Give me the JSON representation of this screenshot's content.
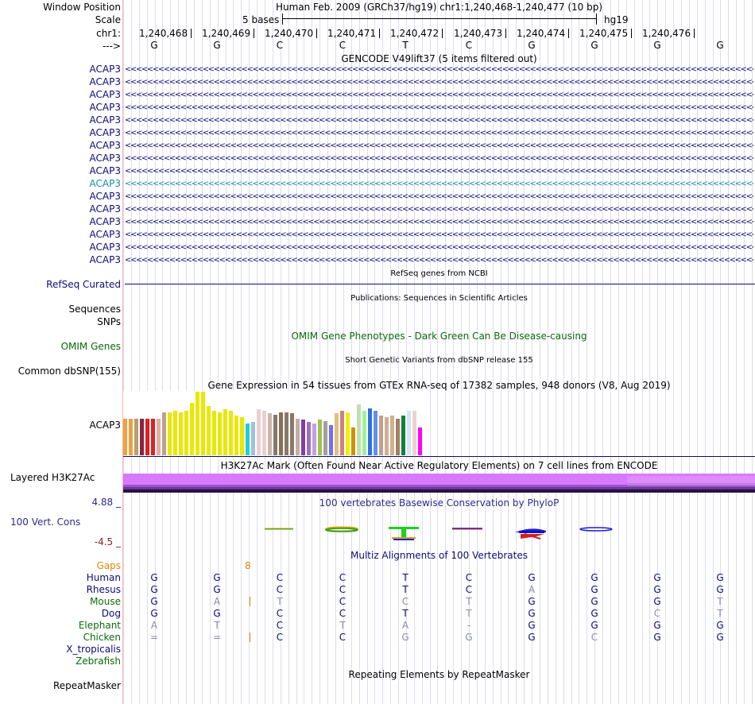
{
  "ruler": {
    "window_position_label": "Window Position",
    "scale_label": "Scale",
    "chrom_label": "chr1:",
    "strand_label": "--->",
    "assembly_text": "Human Feb. 2009 (GRCh37/hg19)   chr1:1,240,468-1,240,477 (10 bp)",
    "scale_text": "5 bases",
    "db_text": "hg19",
    "positions": [
      "1,240,468",
      "1,240,469",
      "1,240,470",
      "1,240,471",
      "1,240,472",
      "1,240,473",
      "1,240,474",
      "1,240,475",
      "1,240,476"
    ],
    "bases": [
      "G",
      "G",
      "C",
      "C",
      "T",
      "C",
      "G",
      "G",
      "G",
      "G"
    ]
  },
  "gencode": {
    "title": "GENCODE V49lift37 (5 items filtered out)",
    "items": [
      "ACAP3",
      "ACAP3",
      "ACAP3",
      "ACAP3",
      "ACAP3",
      "ACAP3",
      "ACAP3",
      "ACAP3",
      "ACAP3",
      "ACAP3",
      "ACAP3",
      "ACAP3",
      "ACAP3",
      "ACAP3",
      "ACAP3",
      "ACAP3"
    ],
    "highlighted_index": 9,
    "color": "#0c0c78",
    "highlight_color": "#1a8aa8"
  },
  "refseq": {
    "label": "RefSeq Curated",
    "title": "RefSeq genes from NCBI",
    "color": "#0c0c78"
  },
  "publications": {
    "label_1": "Sequences",
    "label_2": "SNPs",
    "title": "Publications: Sequences in Scientific Articles"
  },
  "omim": {
    "label": "OMIM Genes",
    "title": "OMIM Gene Phenotypes - Dark Green Can Be Disease-causing",
    "color": "#0a6a0a"
  },
  "dbsnp": {
    "label": "Common dbSNP(155)",
    "title": "Short Genetic Variants from dbSNP release 155"
  },
  "gtex": {
    "label": "ACAP3",
    "title": "Gene Expression in 54 tissues from GTEx RNA-seq of 17382 samples, 948 donors (V8, Aug 2019)",
    "bars": [
      {
        "c": "#f0a040",
        "v": 0.58
      },
      {
        "c": "#f0a040",
        "v": 0.58
      },
      {
        "c": "#b3a06e",
        "v": 0.58
      },
      {
        "c": "#8a2242",
        "v": 0.58
      },
      {
        "c": "#e02020",
        "v": 0.58
      },
      {
        "c": "#e02020",
        "v": 0.58
      },
      {
        "c": "#e0b0a0",
        "v": 0.58
      },
      {
        "c": "#c0a090",
        "v": 0.68
      },
      {
        "c": "#e8e800",
        "v": 0.68
      },
      {
        "c": "#e8e800",
        "v": 0.7
      },
      {
        "c": "#e8e800",
        "v": 0.68
      },
      {
        "c": "#e8e800",
        "v": 0.7
      },
      {
        "c": "#e8e800",
        "v": 0.82
      },
      {
        "c": "#e8e800",
        "v": 1.0
      },
      {
        "c": "#e8e800",
        "v": 1.0
      },
      {
        "c": "#e8e800",
        "v": 0.78
      },
      {
        "c": "#e8e800",
        "v": 0.7
      },
      {
        "c": "#e8e800",
        "v": 0.68
      },
      {
        "c": "#e8e800",
        "v": 0.72
      },
      {
        "c": "#e8e800",
        "v": 0.7
      },
      {
        "c": "#e8e800",
        "v": 0.62
      },
      {
        "c": "#e8e800",
        "v": 0.6
      },
      {
        "c": "#20d0d0",
        "v": 0.5
      },
      {
        "c": "#a0c0e0",
        "v": 0.52
      },
      {
        "c": "#e8d0d0",
        "v": 0.72
      },
      {
        "c": "#e8d0d0",
        "v": 0.7
      },
      {
        "c": "#c8b8a8",
        "v": 0.66
      },
      {
        "c": "#8a7868",
        "v": 0.64
      },
      {
        "c": "#8a6e58",
        "v": 0.68
      },
      {
        "c": "#8a7868",
        "v": 0.68
      },
      {
        "c": "#8a7868",
        "v": 0.66
      },
      {
        "c": "#c0b0a0",
        "v": 0.58
      },
      {
        "c": "#8040a0",
        "v": 0.56
      },
      {
        "c": "#a070c0",
        "v": 0.52
      },
      {
        "c": "#c0a0e0",
        "v": 0.5
      },
      {
        "c": "#a0c050",
        "v": 0.56
      },
      {
        "c": "#a0a0a0",
        "v": 0.54
      },
      {
        "c": "#7070f0",
        "v": 0.48
      },
      {
        "c": "#e0c080",
        "v": 0.66
      },
      {
        "c": "#d08080",
        "v": 0.7
      },
      {
        "c": "#f0f000",
        "v": 0.68
      },
      {
        "c": "#d09000",
        "v": 0.44
      },
      {
        "c": "#c0e0b0",
        "v": 0.8
      },
      {
        "c": "#a0f0a0",
        "v": 0.7
      },
      {
        "c": "#3070e0",
        "v": 0.74
      },
      {
        "c": "#6090f0",
        "v": 0.7
      },
      {
        "c": "#c0a090",
        "v": 0.62
      },
      {
        "c": "#d0b090",
        "v": 0.6
      },
      {
        "c": "#d0b090",
        "v": 0.62
      },
      {
        "c": "#a08060",
        "v": 0.58
      },
      {
        "c": "#108040",
        "v": 0.62
      },
      {
        "c": "#d0e8f0",
        "v": 0.7
      },
      {
        "c": "#f0d0d0",
        "v": 0.7
      },
      {
        "c": "#ff00ff",
        "v": 0.44
      }
    ]
  },
  "h3k27ac": {
    "label": "Layered H3K27Ac",
    "title": "H3K27Ac Mark (Often Found Near Active Regulatory Elements) on 7 cell lines from ENCODE"
  },
  "cons": {
    "max_label": "4.88 _",
    "label": "100 Vert. Cons",
    "min_label": "-4.5 _",
    "title": "100 vertebrates Basewise Conservation by PhyloP",
    "max_color": "#2c2c8a",
    "min_color": "#8a2222"
  },
  "multiz": {
    "title": "Multiz Alignments of 100 Vertebrates",
    "gaps_label": "Gaps",
    "gap_number": "8",
    "gaps_color": "#e08a00",
    "species": [
      {
        "name": "Human",
        "color": "#0c0c78",
        "bases": [
          "G",
          "G",
          "C",
          "C",
          "T",
          "C",
          "G",
          "G",
          "G",
          "G"
        ],
        "faded": [
          0,
          0,
          0,
          0,
          0,
          0,
          0,
          0,
          0,
          0
        ],
        "gap": false
      },
      {
        "name": "Rhesus",
        "color": "#0c0c78",
        "bases": [
          "G",
          "G",
          "C",
          "C",
          "T",
          "C",
          "A",
          "G",
          "G",
          "G"
        ],
        "faded": [
          0,
          0,
          0,
          0,
          0,
          0,
          1,
          0,
          0,
          0
        ],
        "gap": false
      },
      {
        "name": "Mouse",
        "color": "#0a6a0a",
        "bases": [
          "G",
          "A",
          "T",
          "C",
          "C",
          "T",
          "G",
          "G",
          "G",
          "T"
        ],
        "faded": [
          0,
          1,
          1,
          0,
          1,
          1,
          0,
          0,
          0,
          1
        ],
        "gap": true
      },
      {
        "name": "Dog",
        "color": "#0c0c78",
        "bases": [
          "G",
          "G",
          "C",
          "C",
          "T",
          "T",
          "G",
          "G",
          "C",
          "T"
        ],
        "faded": [
          0,
          0,
          0,
          0,
          0,
          1,
          0,
          0,
          1,
          1
        ],
        "gap": false
      },
      {
        "name": "Elephant",
        "color": "#0a6a0a",
        "bases": [
          "A",
          "T",
          "C",
          "T",
          "A",
          "-",
          "G",
          "G",
          "G",
          "G"
        ],
        "faded": [
          1,
          1,
          0,
          1,
          1,
          1,
          0,
          0,
          0,
          0
        ],
        "gap": false
      },
      {
        "name": "Chicken",
        "color": "#0a6a0a",
        "bases": [
          "=",
          "=",
          "C",
          "C",
          "G",
          "G",
          "G",
          "C",
          "G",
          "G"
        ],
        "faded": [
          1,
          1,
          0,
          0,
          1,
          1,
          0,
          1,
          0,
          0
        ],
        "gap": true
      },
      {
        "name": "X_tropicalis",
        "color": "#0c0c78",
        "bases": [],
        "faded": [],
        "gap": false
      },
      {
        "name": "Zebrafish",
        "color": "#0a6a0a",
        "bases": [],
        "faded": [],
        "gap": false
      }
    ]
  },
  "repeatmasker": {
    "label": "RepeatMasker",
    "title": "Repeating Elements by RepeatMasker"
  },
  "colors": {
    "faded_base": "#8a8ab0",
    "grid": "#dcdcef",
    "divider": "#ffb0b0"
  }
}
